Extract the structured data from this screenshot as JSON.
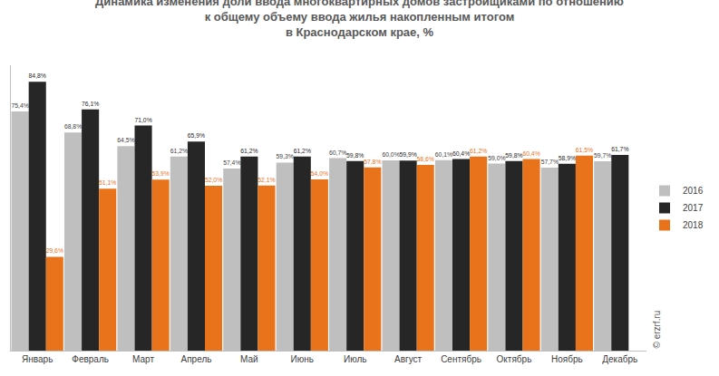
{
  "chart_data": {
    "type": "bar",
    "title": "Динамика изменения доли ввода многоквартирных домов застройщиками по отношению\nк общему объему ввода жилья накопленным итогом\nв Краснодарском крае, %",
    "categories": [
      "Январь",
      "Февраль",
      "Март",
      "Апрель",
      "Май",
      "Июнь",
      "Июль",
      "Август",
      "Сентябрь",
      "Октябрь",
      "Ноябрь",
      "Декабрь"
    ],
    "series": [
      {
        "name": "2016",
        "color": "#bfbfbf",
        "values": [
          75.4,
          68.8,
          64.5,
          61.2,
          57.4,
          59.3,
          60.7,
          60.0,
          60.1,
          59.0,
          57.7,
          59.7
        ],
        "value_labels": [
          "75,4%",
          "68,8%",
          "64,5%",
          "61,2%",
          "57,4%",
          "59,3%",
          "60,7%",
          "60,0%",
          "60,1%",
          "59,0%",
          "57,7%",
          "59,7%"
        ]
      },
      {
        "name": "2017",
        "color": "#262626",
        "values": [
          84.8,
          76.1,
          71.0,
          65.9,
          61.2,
          61.2,
          59.8,
          59.9,
          60.4,
          59.8,
          58.9,
          61.7
        ],
        "value_labels": [
          "84,8%",
          "76,1%",
          "71,0%",
          "65,9%",
          "61,2%",
          "61,2%",
          "59,8%",
          "59,9%",
          "60,4%",
          "59,8%",
          "58,9%",
          "61,7%"
        ]
      },
      {
        "name": "2018",
        "color": "#e8731a",
        "values": [
          29.6,
          51.1,
          53.9,
          52.0,
          52.1,
          54.0,
          57.8,
          58.6,
          61.2,
          60.4,
          61.5,
          null
        ],
        "value_labels": [
          "29,6%",
          "51,1%",
          "53,9%",
          "52,0%",
          "52,1%",
          "54,0%",
          "57,8%",
          "58,6%",
          "61,2%",
          "60,4%",
          "61,5%",
          null
        ]
      }
    ],
    "ylim": [
      0,
      90
    ],
    "yticks": [],
    "grid": false,
    "legend": "right",
    "data_labels": true,
    "tick_labels": "x",
    "annotations": [
      "© erzrf.ru"
    ]
  }
}
